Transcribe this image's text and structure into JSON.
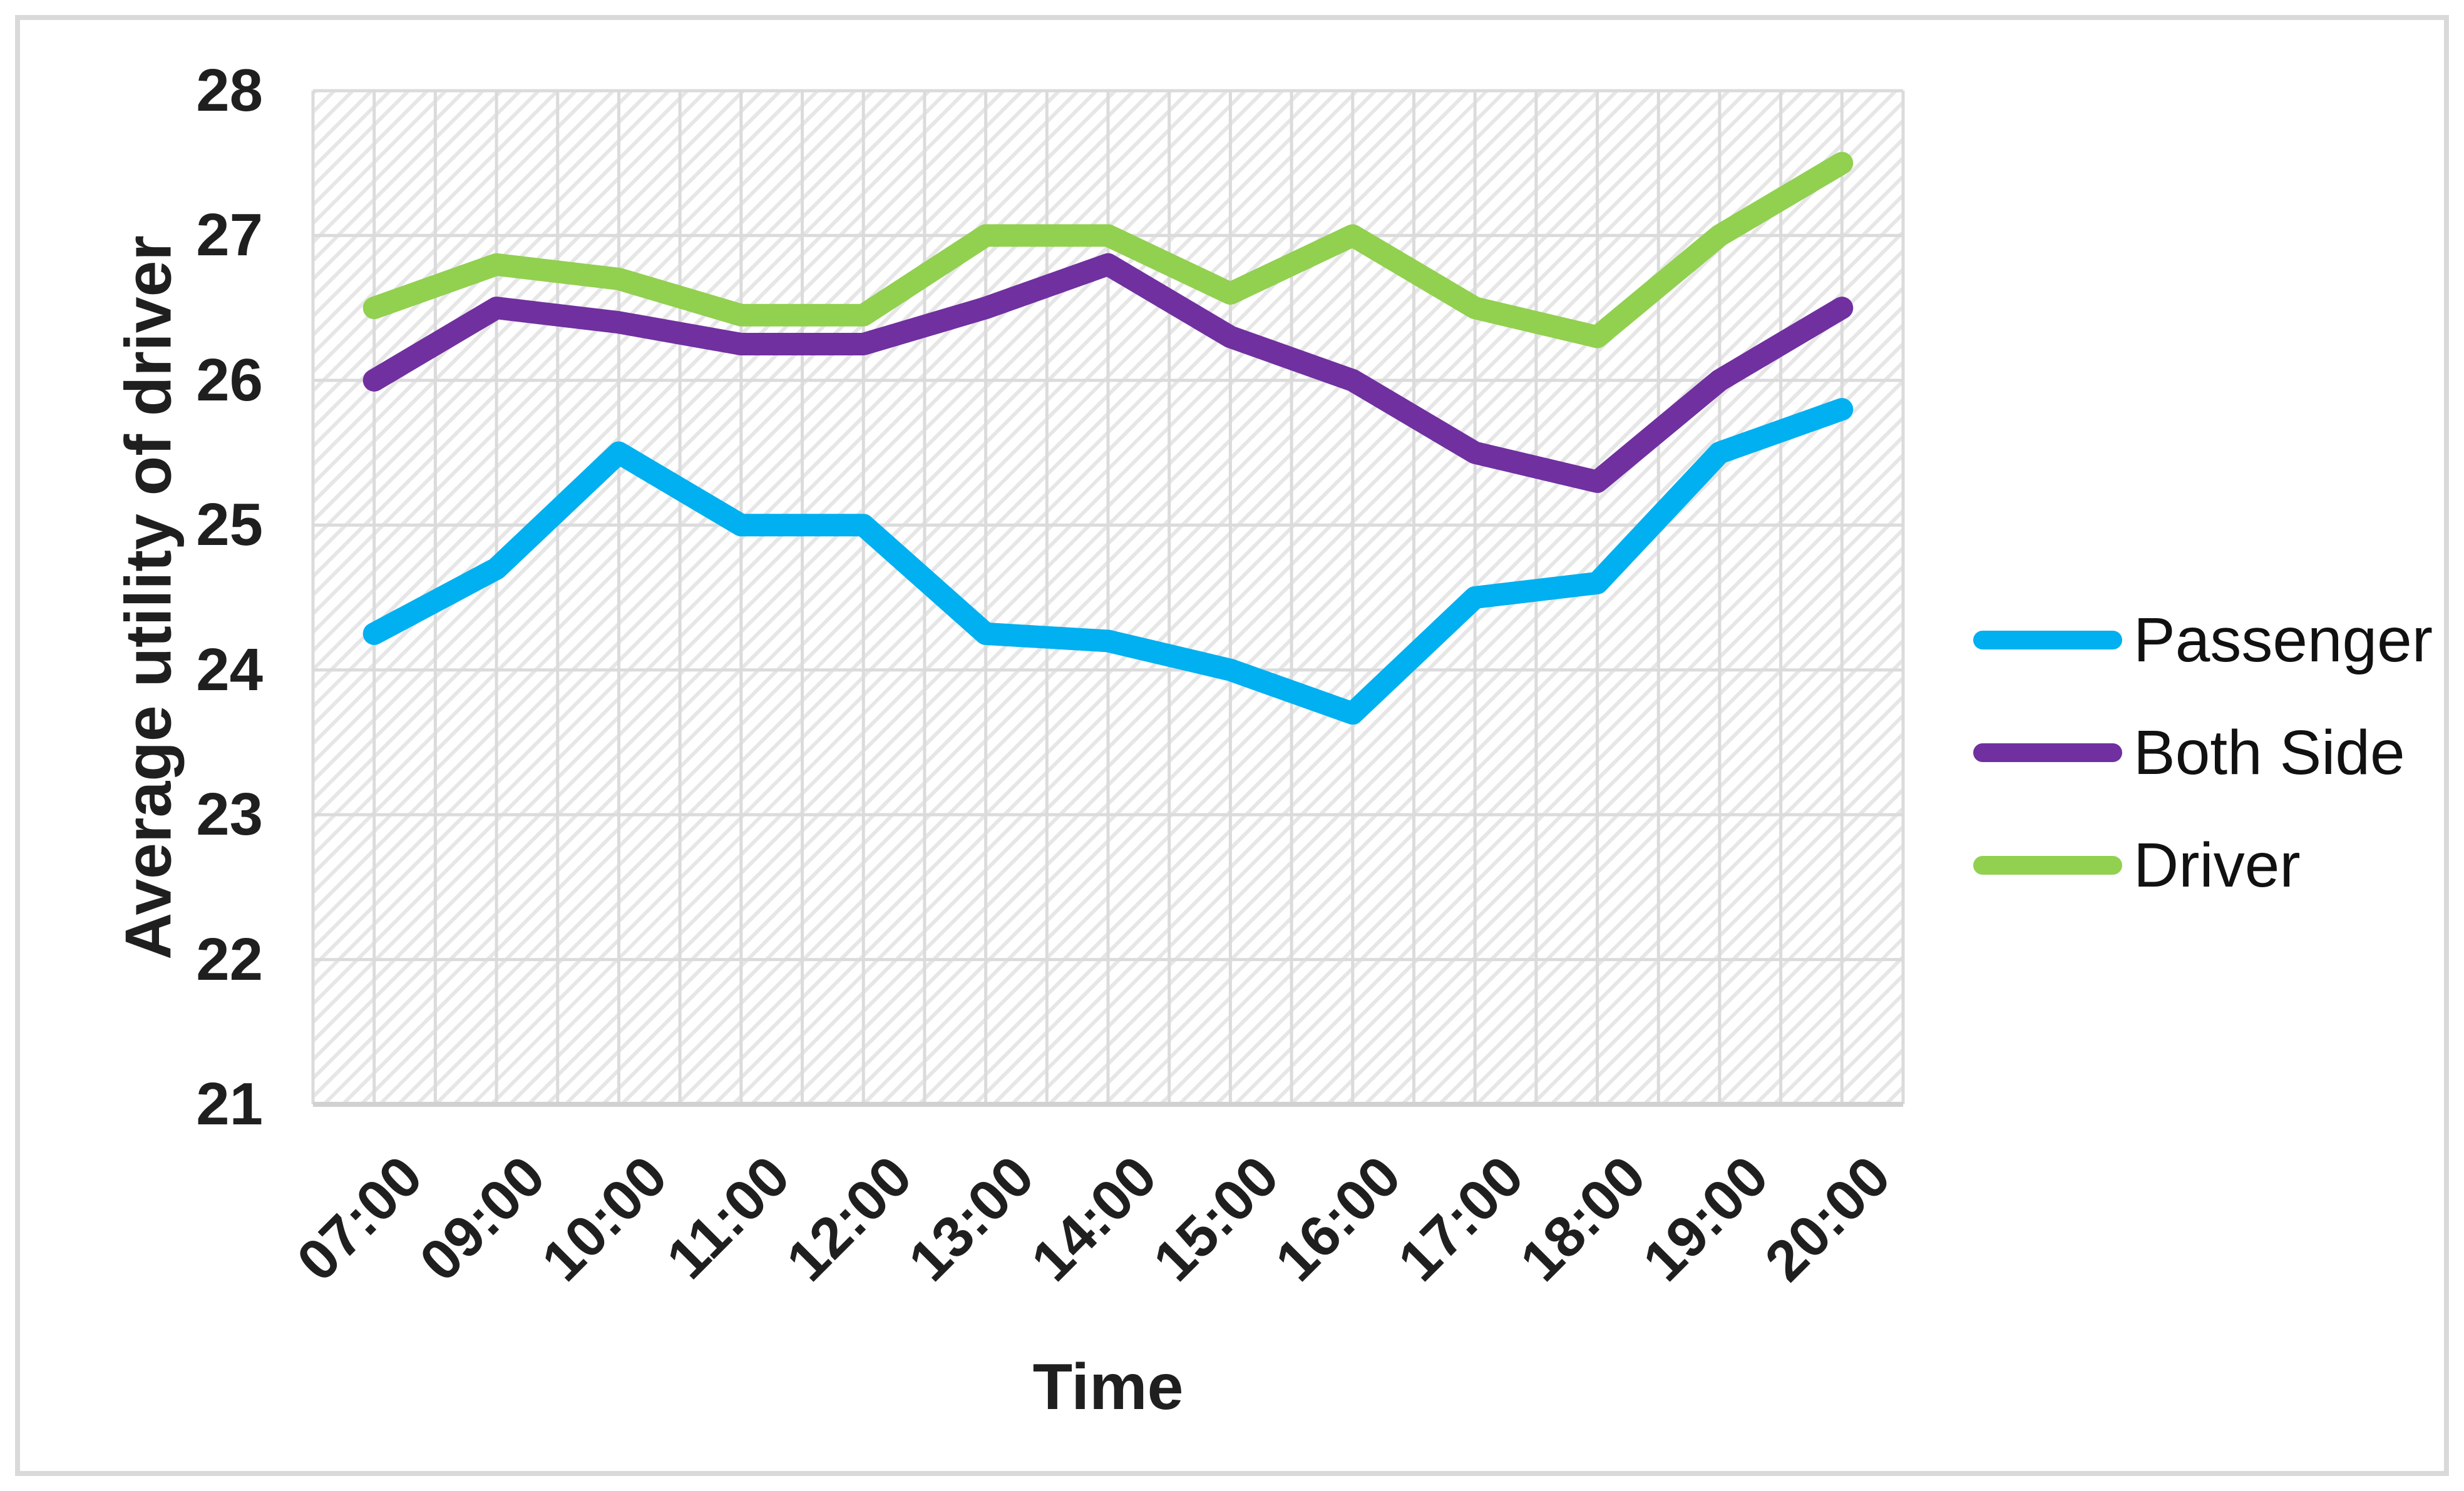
{
  "figure": {
    "border_color": "#D9D9D9",
    "background_color": "#FFFFFF",
    "gridline_color": "#DBDBDB",
    "axis_line_color": "#D1D1D1",
    "text_color": "#1F1F1F"
  },
  "y_axis": {
    "title": "Average utility of driver",
    "tick_labels": [
      "28",
      "27",
      "26",
      "25",
      "24",
      "23",
      "22",
      "21"
    ]
  },
  "x_axis": {
    "title": "Time",
    "tick_labels": [
      "07:00",
      "09:00",
      "10:00",
      "11:00",
      "12:00",
      "13:00",
      "14:00",
      "15:00",
      "16:00",
      "17:00",
      "18:00",
      "19:00",
      "20:00"
    ]
  },
  "legend": {
    "position": "right",
    "items": [
      "Passenger",
      "Both Side",
      "Driver"
    ]
  },
  "chart_data": {
    "type": "line",
    "title": "",
    "xlabel": "Time",
    "ylabel": "Average utility of driver",
    "categories": [
      "07:00",
      "09:00",
      "10:00",
      "11:00",
      "12:00",
      "13:00",
      "14:00",
      "15:00",
      "16:00",
      "17:00",
      "18:00",
      "19:00",
      "20:00"
    ],
    "series": [
      {
        "name": "Passenger",
        "color": "#00B0F0",
        "values": [
          24.25,
          24.7,
          25.5,
          25.0,
          25.0,
          24.25,
          24.2,
          24.0,
          23.7,
          24.5,
          24.6,
          25.5,
          25.8
        ]
      },
      {
        "name": "Both Side",
        "color": "#7030A0",
        "values": [
          26.0,
          26.5,
          26.4,
          26.25,
          26.25,
          26.5,
          26.8,
          26.3,
          26.0,
          25.5,
          25.3,
          26.0,
          26.5
        ]
      },
      {
        "name": "Driver",
        "color": "#92D050",
        "values": [
          26.5,
          26.8,
          26.7,
          26.45,
          26.45,
          27.0,
          27.0,
          26.6,
          27.0,
          26.5,
          26.3,
          27.0,
          27.5
        ]
      }
    ],
    "ylim": [
      21,
      28
    ],
    "y_tick_step": 1,
    "grid": true,
    "plot_background_pattern": "light-diagonal-hatch",
    "legend_position": "right",
    "line_width": 36
  }
}
